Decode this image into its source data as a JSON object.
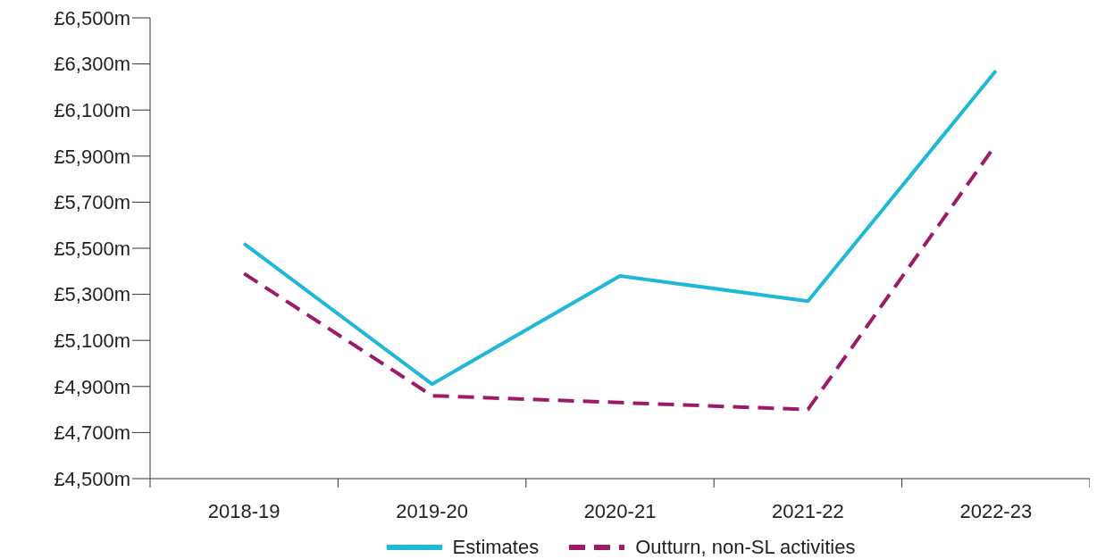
{
  "chart_data": {
    "type": "line",
    "categories": [
      "2018-19",
      "2019-20",
      "2020-21",
      "2021-22",
      "2022-23"
    ],
    "series": [
      {
        "name": "Estimates",
        "color": "#1fb8d6",
        "line_style": "solid",
        "values": [
          5520,
          4910,
          5380,
          5270,
          6270
        ]
      },
      {
        "name": "Outturn, non-SL activities",
        "color": "#9c1a68",
        "line_style": "dashed",
        "values": [
          5390,
          4860,
          4830,
          4800,
          5950
        ]
      }
    ],
    "ylim": [
      4500,
      6500
    ],
    "yticks": [
      {
        "value": 4500,
        "label": "£4,500m"
      },
      {
        "value": 4700,
        "label": "£4,700m"
      },
      {
        "value": 4900,
        "label": "£4,900m"
      },
      {
        "value": 5100,
        "label": "£5,100m"
      },
      {
        "value": 5300,
        "label": "£5,300m"
      },
      {
        "value": 5500,
        "label": "£5,500m"
      },
      {
        "value": 5700,
        "label": "£5,700m"
      },
      {
        "value": 5900,
        "label": "£5,900m"
      },
      {
        "value": 6100,
        "label": "£6,100m"
      },
      {
        "value": 6300,
        "label": "£6,300m"
      },
      {
        "value": 6500,
        "label": "£6,500m"
      }
    ],
    "grid": false,
    "legend": "bottom",
    "marker": "none"
  }
}
